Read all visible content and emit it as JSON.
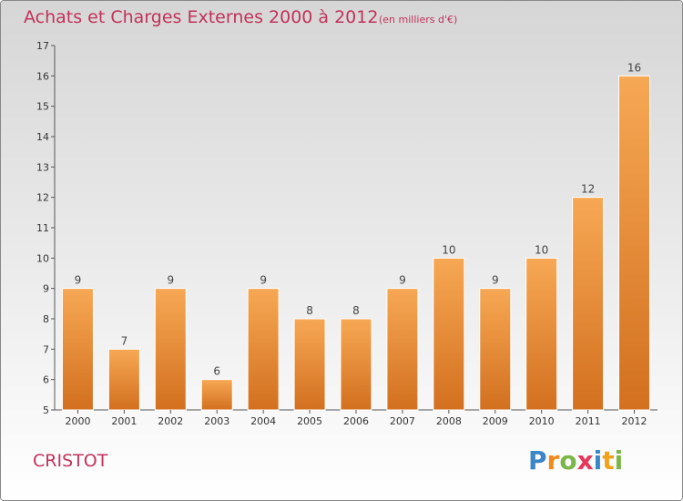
{
  "chart_data": {
    "type": "bar",
    "title": "Achats et Charges Externes 2000 à 2012",
    "subtitle": "(en milliers d'€)",
    "categories": [
      "2000",
      "2001",
      "2002",
      "2003",
      "2004",
      "2005",
      "2006",
      "2007",
      "2008",
      "2009",
      "2010",
      "2011",
      "2012"
    ],
    "values": [
      9,
      7,
      9,
      6,
      9,
      8,
      8,
      9,
      10,
      9,
      10,
      12,
      16
    ],
    "ylim": [
      5,
      17
    ],
    "yticks": [
      5,
      6,
      7,
      8,
      9,
      10,
      11,
      12,
      13,
      14,
      15,
      16,
      17
    ],
    "xlabel": "",
    "ylabel": "",
    "grid": false,
    "bar_color_top": "#f7a854",
    "bar_color_bottom": "#d2701f"
  },
  "commune": "CRISTOT",
  "logo": {
    "letters": [
      "P",
      "r",
      "o",
      "x",
      "i",
      "t",
      "i"
    ],
    "colors": [
      "#3a86c8",
      "#f08a1c",
      "#7ab648",
      "#e8365a",
      "#3a86c8",
      "#f0a21c",
      "#7ab648"
    ]
  },
  "colors": {
    "accent": "#c2325a",
    "background_top": "#d8d8d8",
    "background_bottom": "#ffffff"
  }
}
